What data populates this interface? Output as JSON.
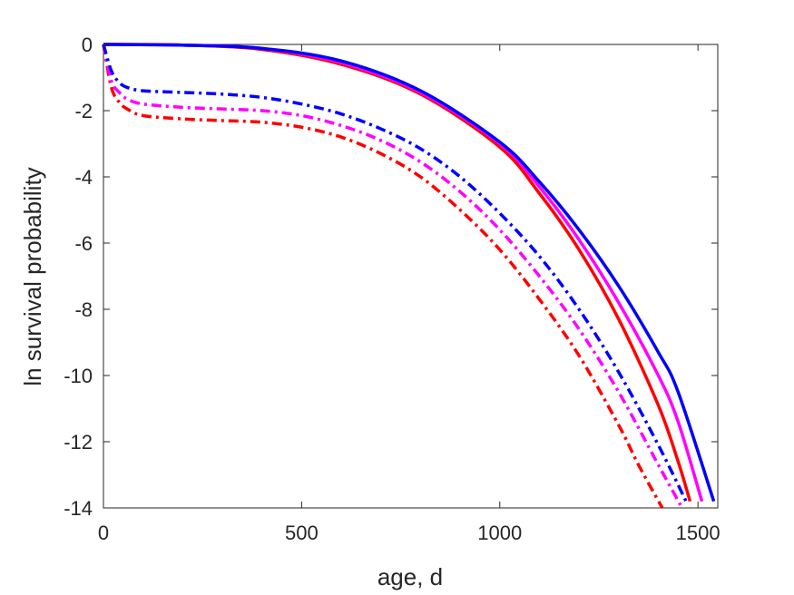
{
  "chart_data": {
    "type": "line",
    "xlabel": "age, d",
    "ylabel": "ln survival probability",
    "xlim": [
      0,
      1550
    ],
    "ylim": [
      -14,
      0
    ],
    "xticks": [
      0,
      500,
      1000,
      1500
    ],
    "yticks": [
      0,
      -2,
      -4,
      -6,
      -8,
      -10,
      -12,
      -14
    ],
    "grid": false,
    "legend": "none",
    "series": [
      {
        "color": "#ff0000",
        "style": "solid",
        "x": [
          0,
          200,
          400,
          600,
          800,
          1000,
          1100,
          1200,
          1300,
          1400,
          1450,
          1480
        ],
        "y": [
          0,
          -0.02,
          -0.15,
          -0.6,
          -1.5,
          -3.1,
          -4.5,
          -6.2,
          -8.3,
          -10.9,
          -12.6,
          -13.8
        ]
      },
      {
        "color": "#ff00ff",
        "style": "solid",
        "x": [
          0,
          200,
          400,
          600,
          800,
          1000,
          1100,
          1200,
          1300,
          1400,
          1450,
          1510
        ],
        "y": [
          0,
          -0.02,
          -0.12,
          -0.55,
          -1.45,
          -3.0,
          -4.3,
          -5.9,
          -7.8,
          -10.0,
          -11.4,
          -13.8
        ]
      },
      {
        "color": "#0000ff",
        "style": "solid",
        "x": [
          0,
          200,
          400,
          600,
          800,
          1000,
          1100,
          1200,
          1300,
          1400,
          1450,
          1540
        ],
        "y": [
          0,
          -0.02,
          -0.12,
          -0.5,
          -1.4,
          -2.95,
          -4.15,
          -5.6,
          -7.3,
          -9.3,
          -10.5,
          -13.8
        ]
      },
      {
        "color": "#ff0000",
        "style": "dashdot",
        "x": [
          0,
          20,
          40,
          60,
          100,
          200,
          300,
          400,
          500,
          600,
          700,
          800,
          900,
          1000,
          1100,
          1200,
          1300,
          1350,
          1410
        ],
        "y": [
          0,
          -1.3,
          -1.75,
          -1.95,
          -2.15,
          -2.25,
          -2.3,
          -2.35,
          -2.5,
          -2.8,
          -3.3,
          -4.0,
          -5.0,
          -6.2,
          -7.7,
          -9.4,
          -11.5,
          -12.7,
          -14.0
        ]
      },
      {
        "color": "#ff00ff",
        "style": "dashdot",
        "x": [
          0,
          20,
          40,
          60,
          100,
          200,
          300,
          400,
          500,
          600,
          700,
          800,
          900,
          1000,
          1100,
          1200,
          1300,
          1400,
          1460
        ],
        "y": [
          0,
          -1.1,
          -1.45,
          -1.65,
          -1.8,
          -1.9,
          -1.95,
          -2.0,
          -2.15,
          -2.45,
          -2.9,
          -3.55,
          -4.45,
          -5.6,
          -7.0,
          -8.6,
          -10.5,
          -12.7,
          -14.0
        ]
      },
      {
        "color": "#0000ff",
        "style": "dashdot",
        "x": [
          0,
          20,
          40,
          60,
          100,
          200,
          300,
          400,
          500,
          600,
          700,
          800,
          900,
          1000,
          1100,
          1200,
          1300,
          1400,
          1470
        ],
        "y": [
          0,
          -0.8,
          -1.15,
          -1.3,
          -1.4,
          -1.45,
          -1.5,
          -1.6,
          -1.8,
          -2.1,
          -2.55,
          -3.15,
          -4.0,
          -5.1,
          -6.4,
          -8.0,
          -9.9,
          -12.1,
          -13.8
        ]
      }
    ]
  }
}
